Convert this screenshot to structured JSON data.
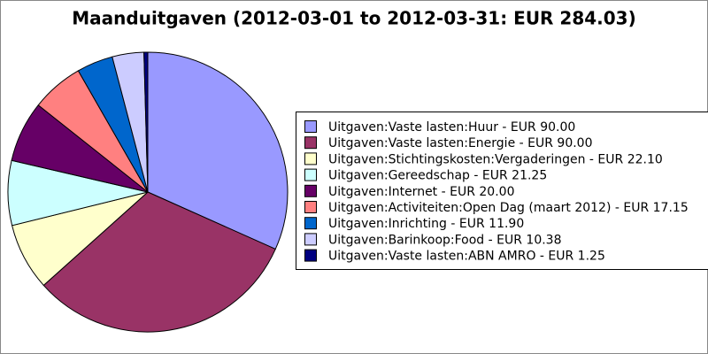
{
  "chart_data": {
    "type": "pie",
    "title": "Maanduitgaven (2012-03-01 to 2012-03-31: EUR 284.03)",
    "categories": [
      "Uitgaven:Vaste lasten:Huur - EUR 90.00",
      "Uitgaven:Vaste lasten:Energie - EUR 90.00",
      "Uitgaven:Stichtingskosten:Vergaderingen - EUR 22.10",
      "Uitgaven:Gereedschap - EUR 21.25",
      "Uitgaven:Internet - EUR 20.00",
      "Uitgaven:Activiteiten:Open Dag (maart 2012) - EUR 17.15",
      "Uitgaven:Inrichting - EUR 11.90",
      "Uitgaven:Barinkoop:Food - EUR 10.38",
      "Uitgaven:Vaste lasten:ABN AMRO - EUR 1.25"
    ],
    "values": [
      90,
      90,
      22.1,
      21.25,
      20,
      17.15,
      11.9,
      10.38,
      1.25
    ],
    "colors": [
      "#9999ff",
      "#993366",
      "#ffffcc",
      "#ccffff",
      "#660066",
      "#ff8080",
      "#0066cc",
      "#ccccff",
      "#000080"
    ]
  }
}
